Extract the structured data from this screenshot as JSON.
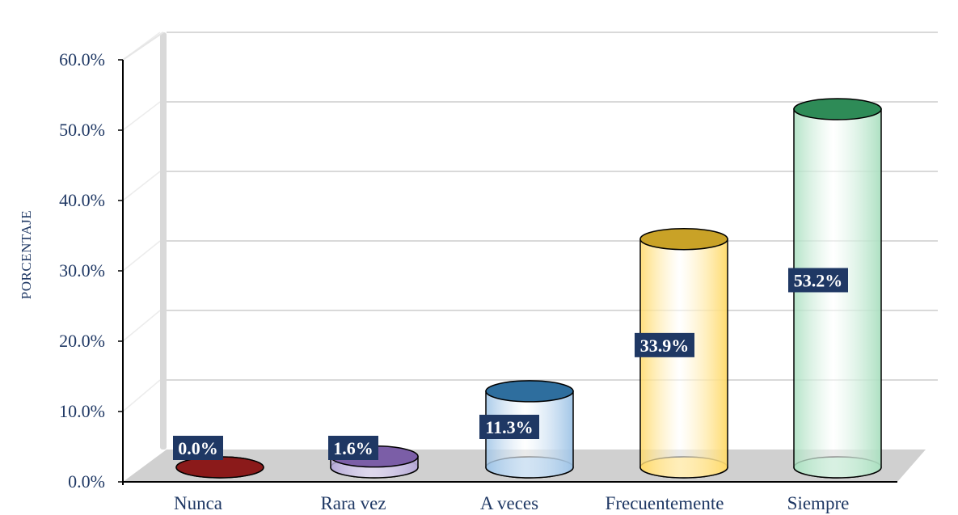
{
  "chart_data": {
    "type": "bar",
    "style": "3d-cylinder",
    "categories": [
      "Nunca",
      "Rara vez",
      "A veces",
      "Frecuentemente",
      "Siempre"
    ],
    "values": [
      0.0,
      1.6,
      11.3,
      33.9,
      53.2
    ],
    "data_labels": [
      "0.0%",
      "1.6%",
      "11.3%",
      "33.9%",
      "53.2%"
    ],
    "title": "",
    "xlabel": "",
    "ylabel": "PORCENTAJE",
    "ylim": [
      0,
      60
    ],
    "yticks": [
      "0.0%",
      "10.0%",
      "20.0%",
      "30.0%",
      "40.0%",
      "50.0%",
      "60.0%"
    ],
    "grid": true,
    "legend": "none",
    "colors": {
      "fills": [
        "#c0504d",
        "#b4a7d6",
        "#9dc3e6",
        "#ffd966",
        "#a9dfbf"
      ],
      "tops": [
        "#8b1a1a",
        "#7b5ea7",
        "#2e6e9e",
        "#c9a227",
        "#2e8b57"
      ],
      "label_bg": "#1f3864",
      "text": "#1f3864",
      "grid": "#d9d9d9"
    }
  }
}
